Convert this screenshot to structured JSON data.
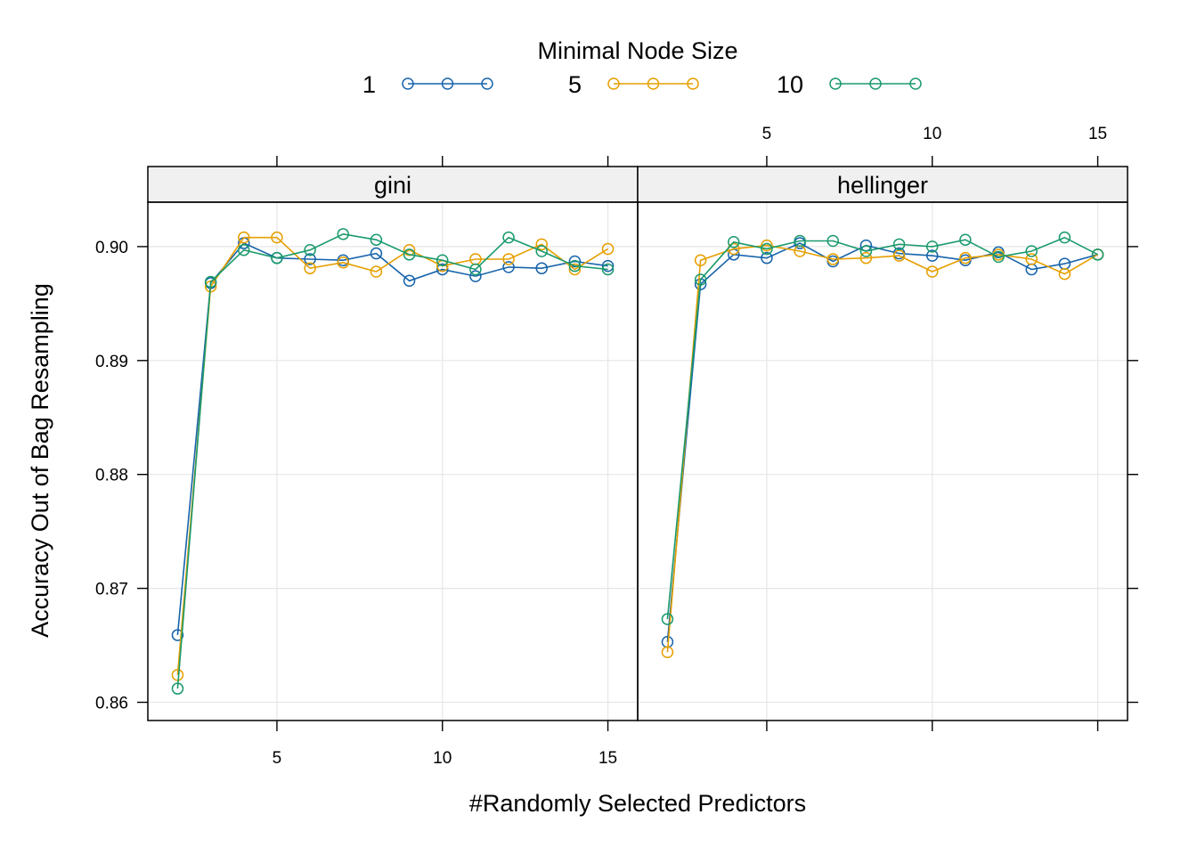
{
  "chart_data": {
    "type": "line",
    "legend": {
      "title": "Minimal Node Size",
      "placement": "top",
      "entries": [
        {
          "label": "1",
          "color": "#1764ab"
        },
        {
          "label": "5",
          "color": "#e69f00"
        },
        {
          "label": "10",
          "color": "#1a9a6c"
        }
      ]
    },
    "xlabel": "#Randomly Selected Predictors",
    "ylabel": "Accuracy Out of Bag Resampling",
    "xlim": [
      1.1,
      15.9
    ],
    "ylim": [
      0.8584,
      0.9039
    ],
    "xticks": [
      5,
      10,
      15
    ],
    "yticks": [
      0.86,
      0.87,
      0.88,
      0.89,
      0.9
    ],
    "ytick_labels": [
      "0.86",
      "0.87",
      "0.88",
      "0.89",
      "0.90"
    ],
    "grid": true,
    "panels": [
      {
        "label": "gini",
        "x": [
          2,
          3,
          4,
          5,
          6,
          7,
          8,
          9,
          10,
          11,
          12,
          13,
          14,
          15
        ],
        "series": [
          {
            "name": "1",
            "values": [
              0.8659,
              0.8968,
              0.9003,
              0.899,
              0.8989,
              0.8988,
              0.8994,
              0.897,
              0.898,
              0.8974,
              0.8982,
              0.8981,
              0.8987,
              0.8983
            ]
          },
          {
            "name": "5",
            "values": [
              0.8624,
              0.8965,
              0.9008,
              0.9008,
              0.8981,
              0.8986,
              0.8978,
              0.8997,
              0.8983,
              0.8989,
              0.8989,
              0.9002,
              0.898,
              0.8998
            ]
          },
          {
            "name": "10",
            "values": [
              0.8612,
              0.8969,
              0.8997,
              0.899,
              0.8997,
              0.9011,
              0.9006,
              0.8993,
              0.8988,
              0.898,
              0.9008,
              0.8996,
              0.8983,
              0.898
            ]
          }
        ]
      },
      {
        "label": "hellinger",
        "x": [
          2,
          3,
          4,
          5,
          6,
          7,
          8,
          9,
          10,
          11,
          12,
          13,
          14,
          15
        ],
        "series": [
          {
            "name": "1",
            "values": [
              0.8653,
              0.8967,
              0.8993,
              0.899,
              0.9003,
              0.8987,
              0.9001,
              0.8994,
              0.8992,
              0.8988,
              0.8995,
              0.898,
              0.8985,
              0.8993
            ]
          },
          {
            "name": "5",
            "values": [
              0.8644,
              0.8988,
              0.8998,
              0.9001,
              0.8996,
              0.8989,
              0.899,
              0.8992,
              0.8978,
              0.899,
              0.8993,
              0.8989,
              0.8976,
              0.8993
            ]
          },
          {
            "name": "10",
            "values": [
              0.8673,
              0.8971,
              0.9004,
              0.8998,
              0.9005,
              0.9005,
              0.8996,
              0.9002,
              0.9,
              0.9006,
              0.8991,
              0.8996,
              0.9008,
              0.8993
            ]
          }
        ]
      }
    ]
  }
}
